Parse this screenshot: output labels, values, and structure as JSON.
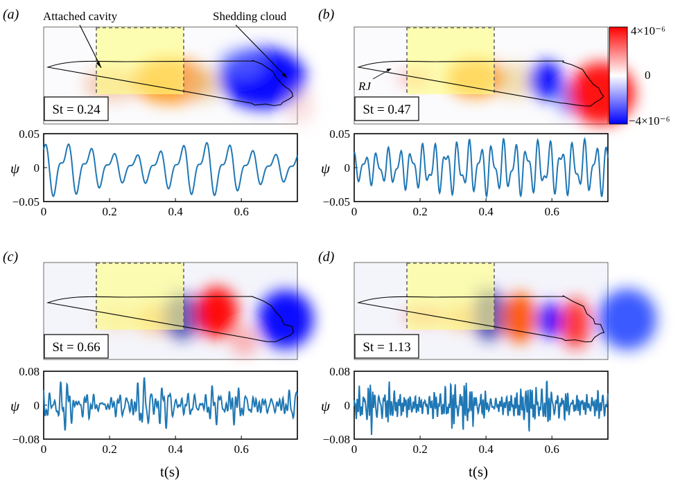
{
  "figure": {
    "panels": [
      {
        "label": "(a)",
        "st_label": "St = 0.24",
        "mode": "a",
        "y_ticks": [
          "0.05",
          "0",
          "−0.05"
        ],
        "y_lim": 0.05
      },
      {
        "label": "(b)",
        "st_label": "St = 0.47",
        "mode": "b",
        "y_ticks": [
          "0.05",
          "0",
          "−0.05"
        ],
        "y_lim": 0.05
      },
      {
        "label": "(c)",
        "st_label": "St = 0.66",
        "mode": "c",
        "y_ticks": [
          "0.08",
          "0",
          "−0.08"
        ],
        "y_lim": 0.08
      },
      {
        "label": "(d)",
        "st_label": "St = 1.13",
        "mode": "d",
        "y_ticks": [
          "0.08",
          "0",
          "−0.08"
        ],
        "y_lim": 0.08
      }
    ],
    "annotations": {
      "attached_cavity": "Attached cavity",
      "shedding_cloud": "Shedding cloud",
      "rj": "RJ"
    },
    "colorbar": {
      "max_label": "4×10⁻⁶",
      "mid_label": "0",
      "min_label": "−4×10⁻⁶",
      "colors": {
        "positive": "#ff0000",
        "neutral": "#ffffff",
        "negative": "#0000ff"
      }
    },
    "x_axis": {
      "ticks": [
        "0",
        "0.2",
        "0.4",
        "0.6"
      ],
      "label": "t(s)",
      "range": [
        0,
        0.77
      ]
    },
    "y_axis_label": "ψ",
    "line_color": "#1f77b4",
    "highlight_color": "#ffff80"
  },
  "chart_data": [
    {
      "type": "line",
      "panel": "a",
      "x_range": [
        0,
        0.77
      ],
      "ylim": [
        -0.05,
        0.05
      ],
      "dominant_oscillations": 11,
      "amplitude_range": [
        -0.045,
        0.043
      ]
    },
    {
      "type": "line",
      "panel": "b",
      "x_range": [
        0,
        0.77
      ],
      "ylim": [
        -0.05,
        0.05
      ],
      "dominant_oscillations": 22,
      "amplitude_range": [
        -0.04,
        0.045
      ]
    },
    {
      "type": "line",
      "panel": "c",
      "x_range": [
        0,
        0.77
      ],
      "ylim": [
        -0.08,
        0.08
      ],
      "dominant_oscillations": 30,
      "amplitude_range": [
        -0.065,
        0.065
      ]
    },
    {
      "type": "line",
      "panel": "d",
      "x_range": [
        0,
        0.77
      ],
      "ylim": [
        -0.08,
        0.08
      ],
      "dominant_oscillations": 50,
      "amplitude_range": [
        -0.075,
        0.065
      ]
    }
  ]
}
